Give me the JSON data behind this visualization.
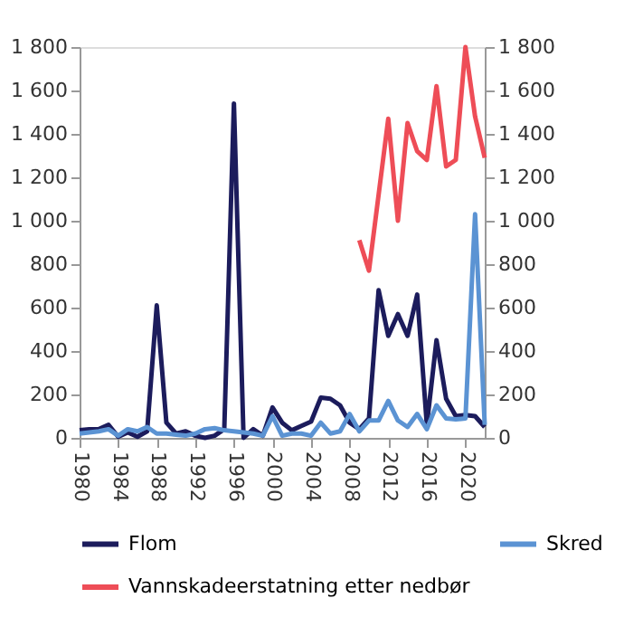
{
  "chart_data": {
    "type": "line",
    "xlim": [
      1980,
      2022
    ],
    "xticks": [
      1980,
      1984,
      1988,
      1992,
      1996,
      2000,
      2004,
      2008,
      2012,
      2016,
      2020
    ],
    "ylim": [
      0,
      1800
    ],
    "yticks": [
      0,
      200,
      400,
      600,
      800,
      {
        "value": 1000,
        "label": "1 000"
      },
      {
        "value": 1200,
        "label": "1 200"
      },
      {
        "value": 1400,
        "label": "1 400"
      },
      {
        "value": 1600,
        "label": "1 600"
      },
      {
        "value": 1800,
        "label": "1 800"
      }
    ],
    "y2lim": [
      0,
      1800
    ],
    "y2ticks": [
      0,
      200,
      400,
      600,
      800,
      {
        "value": 1000,
        "label": "1 000"
      },
      {
        "value": 1200,
        "label": "1 200"
      },
      {
        "value": 1400,
        "label": "1 400"
      },
      {
        "value": 1600,
        "label": "1 600"
      },
      {
        "value": 1800,
        "label": "1 800"
      }
    ],
    "grid": false,
    "legend": "bottom",
    "marker": "none",
    "line_style": "solid",
    "series": [
      {
        "name": "Flom",
        "color": "#1c1c5c",
        "x": [
          1980,
          1981,
          1982,
          1983,
          1984,
          1985,
          1986,
          1987,
          1988,
          1989,
          1990,
          1991,
          1992,
          1993,
          1994,
          1995,
          1996,
          1997,
          1998,
          1999,
          2000,
          2001,
          2002,
          2003,
          2004,
          2005,
          2006,
          2007,
          2008,
          2009,
          2010,
          2011,
          2012,
          2013,
          2014,
          2015,
          2016,
          2017,
          2018,
          2019,
          2020,
          2021,
          2022
        ],
        "values": [
          35,
          40,
          40,
          60,
          5,
          25,
          5,
          30,
          610,
          70,
          20,
          30,
          10,
          0,
          10,
          40,
          1540,
          0,
          40,
          10,
          140,
          70,
          35,
          55,
          75,
          185,
          180,
          150,
          70,
          40,
          90,
          680,
          470,
          570,
          470,
          660,
          60,
          450,
          180,
          100,
          105,
          100,
          50
        ]
      },
      {
        "name": "Skred",
        "color": "#5b93d3",
        "x": [
          1980,
          1981,
          1982,
          1983,
          1984,
          1985,
          1986,
          1987,
          1988,
          1989,
          1990,
          1991,
          1992,
          1993,
          1994,
          1995,
          1996,
          1997,
          1998,
          1999,
          2000,
          2001,
          2002,
          2003,
          2004,
          2005,
          2006,
          2007,
          2008,
          2009,
          2010,
          2011,
          2012,
          2013,
          2014,
          2015,
          2016,
          2017,
          2018,
          2019,
          2020,
          2021,
          2022
        ],
        "values": [
          20,
          25,
          30,
          40,
          10,
          40,
          30,
          50,
          20,
          20,
          15,
          10,
          20,
          40,
          45,
          35,
          30,
          25,
          20,
          10,
          100,
          10,
          20,
          20,
          10,
          70,
          20,
          30,
          110,
          30,
          80,
          80,
          170,
          80,
          50,
          110,
          40,
          150,
          90,
          85,
          90,
          1030,
          60
        ]
      },
      {
        "name": "Vannskadeerstatning etter nedbør",
        "color": "#ee4d57",
        "axis": "y2",
        "x": [
          2009,
          2010,
          2011,
          2012,
          2013,
          2014,
          2015,
          2016,
          2017,
          2018,
          2019,
          2020,
          2021,
          2022
        ],
        "values": [
          910,
          770,
          1120,
          1470,
          1000,
          1450,
          1320,
          1280,
          1620,
          1250,
          1280,
          1800,
          1480,
          1290
        ]
      }
    ]
  }
}
